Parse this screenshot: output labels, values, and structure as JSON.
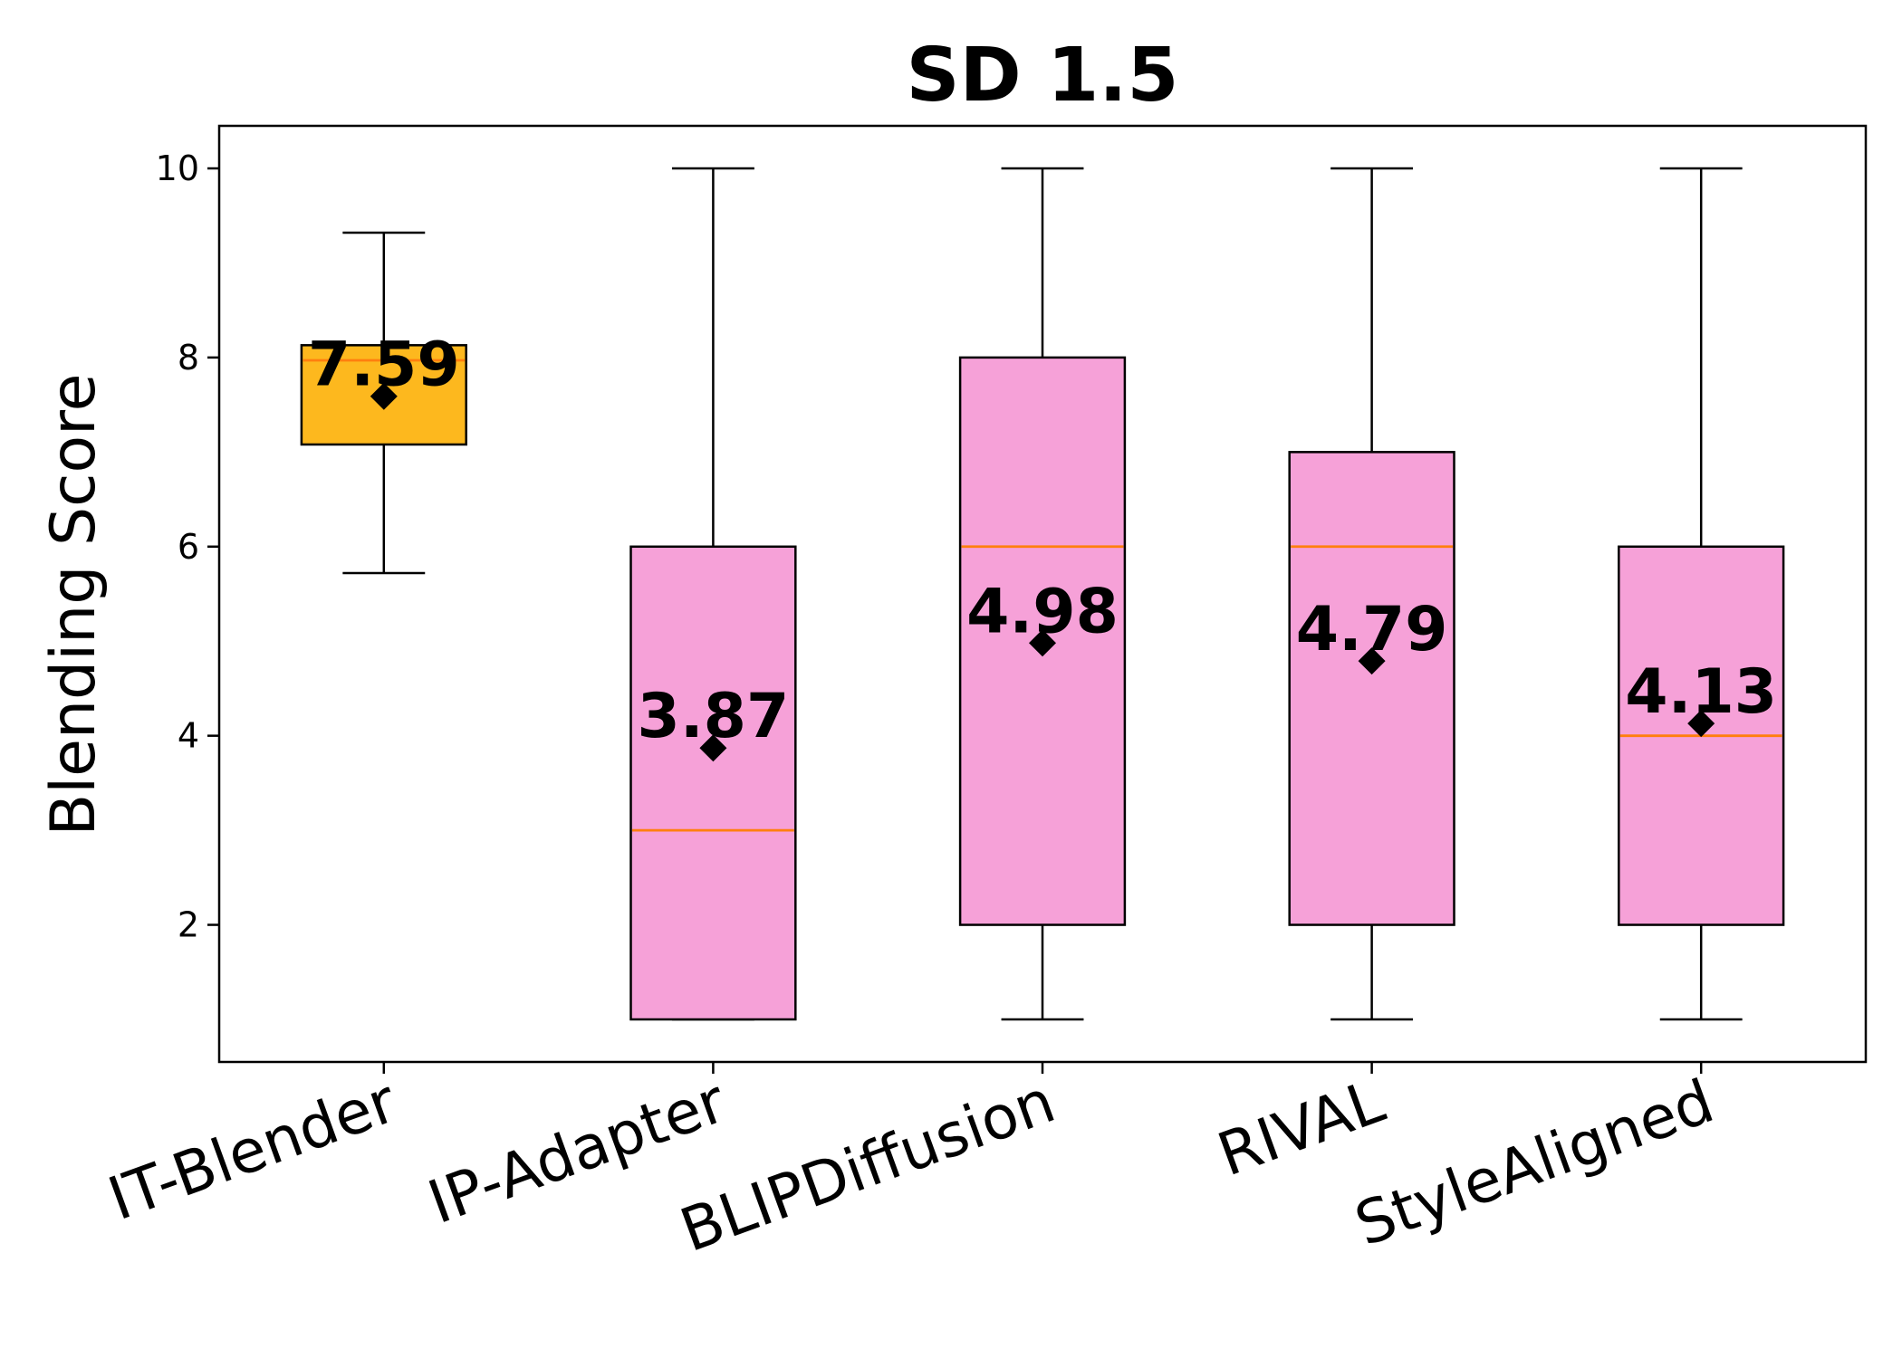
{
  "chart_data": {
    "type": "box",
    "title": "SD 1.5",
    "xlabel": "",
    "ylabel": "Blending Score",
    "ylim": [
      0.55,
      10.45
    ],
    "yticks": [
      2,
      4,
      6,
      8,
      10
    ],
    "ytick_labels": [
      "2",
      "4",
      "6",
      "8",
      "10"
    ],
    "grid": false,
    "colors": {
      "highlight_box": "#FDB81E",
      "box": "#F6A1D8",
      "median": "#FF7F0E",
      "edge": "#000000",
      "mean_marker": "#000000"
    },
    "series": [
      {
        "name": "IT-Blender",
        "whisker_low": 5.72,
        "q1": 7.08,
        "median": 7.97,
        "q3": 8.13,
        "whisker_high": 9.32,
        "mean": 7.59,
        "mean_label": "7.59",
        "highlight": true
      },
      {
        "name": "IP-Adapter",
        "whisker_low": 1,
        "q1": 1,
        "median": 3,
        "q3": 6,
        "whisker_high": 10,
        "mean": 3.87,
        "mean_label": "3.87",
        "highlight": false
      },
      {
        "name": "BLIPDiffusion",
        "whisker_low": 1,
        "q1": 2,
        "median": 6,
        "q3": 8,
        "whisker_high": 10,
        "mean": 4.98,
        "mean_label": "4.98",
        "highlight": false
      },
      {
        "name": "RIVAL",
        "whisker_low": 1,
        "q1": 2,
        "median": 6,
        "q3": 7,
        "whisker_high": 10,
        "mean": 4.79,
        "mean_label": "4.79",
        "highlight": false
      },
      {
        "name": "StyleAligned",
        "whisker_low": 1,
        "q1": 2,
        "median": 4,
        "q3": 6,
        "whisker_high": 10,
        "mean": 4.13,
        "mean_label": "4.13",
        "highlight": false
      }
    ]
  }
}
